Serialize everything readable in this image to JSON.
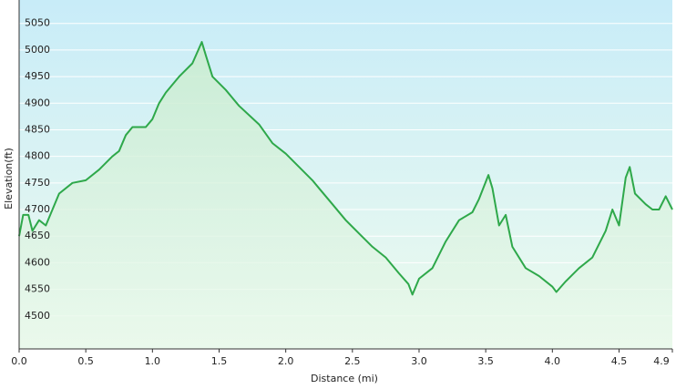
{
  "chart_data": {
    "type": "area",
    "xlabel": "Distance  (mi)",
    "ylabel": "Elevation(ft)",
    "x": [
      0.0,
      0.03,
      0.07,
      0.1,
      0.15,
      0.2,
      0.3,
      0.4,
      0.5,
      0.6,
      0.7,
      0.75,
      0.8,
      0.85,
      0.95,
      1.0,
      1.05,
      1.1,
      1.2,
      1.3,
      1.37,
      1.4,
      1.45,
      1.55,
      1.65,
      1.8,
      1.9,
      2.0,
      2.1,
      2.2,
      2.25,
      2.35,
      2.45,
      2.55,
      2.65,
      2.75,
      2.85,
      2.92,
      2.95,
      3.0,
      3.1,
      3.2,
      3.3,
      3.4,
      3.45,
      3.52,
      3.55,
      3.6,
      3.65,
      3.7,
      3.8,
      3.9,
      4.0,
      4.03,
      4.1,
      4.2,
      4.3,
      4.4,
      4.45,
      4.5,
      4.55,
      4.58,
      4.62,
      4.7,
      4.75,
      4.8,
      4.85,
      4.9
    ],
    "series": [
      {
        "name": "Elevation",
        "color": "#2ea84a",
        "values": [
          4650,
          4690,
          4690,
          4660,
          4680,
          4670,
          4730,
          4750,
          4755,
          4775,
          4800,
          4810,
          4840,
          4855,
          4855,
          4870,
          4900,
          4920,
          4950,
          4975,
          5015,
          4990,
          4950,
          4925,
          4895,
          4860,
          4825,
          4805,
          4780,
          4755,
          4740,
          4710,
          4680,
          4655,
          4630,
          4610,
          4580,
          4560,
          4540,
          4570,
          4590,
          4640,
          4680,
          4695,
          4720,
          4765,
          4740,
          4670,
          4690,
          4630,
          4590,
          4575,
          4555,
          4545,
          4565,
          4590,
          4610,
          4660,
          4700,
          4670,
          4760,
          4780,
          4730,
          4710,
          4700,
          4700,
          4725,
          4700
        ]
      }
    ],
    "xlim": [
      0,
      4.9
    ],
    "ylim": [
      4438,
      5094
    ],
    "xticks": [
      {
        "value": 0,
        "label": "0.0"
      },
      0.5,
      {
        "value": 1,
        "label": "1.0"
      },
      1.5,
      {
        "value": 2,
        "label": "2.0"
      },
      2.5,
      {
        "value": 3,
        "label": "3.0"
      },
      3.5,
      {
        "value": 4,
        "label": "4.0"
      },
      4.5,
      4.9
    ],
    "yticks": [
      4500,
      4550,
      4600,
      4650,
      4700,
      4750,
      4800,
      4850,
      4900,
      4950,
      5000,
      5050
    ],
    "grid": true
  }
}
